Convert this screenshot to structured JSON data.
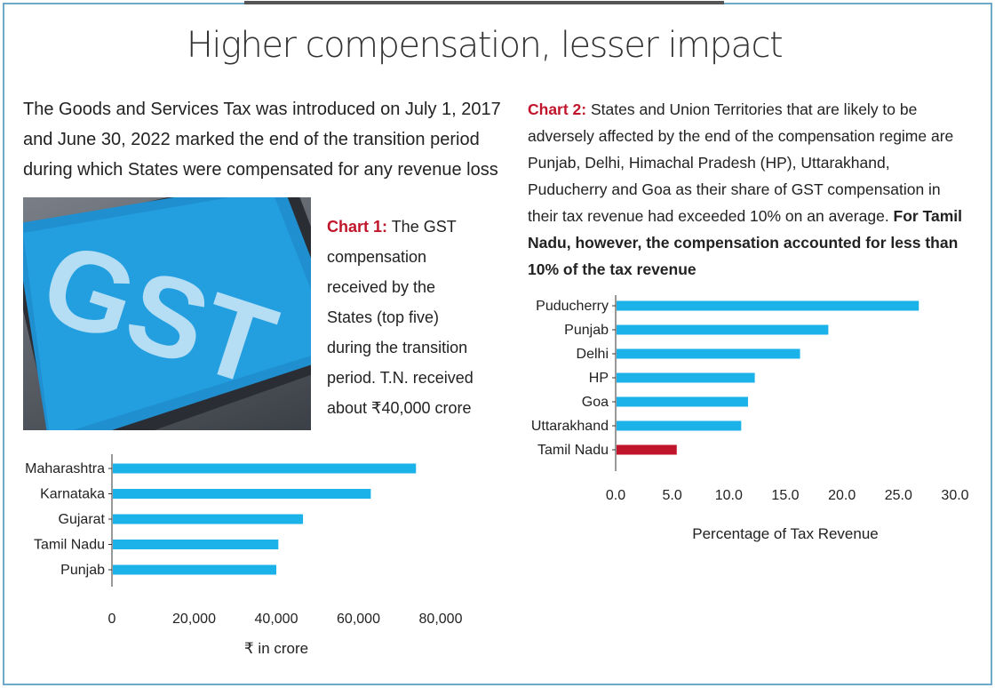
{
  "headline": "Higher compensation, lesser impact",
  "intro": "The Goods and Services Tax was introduced on July 1, 2017 and June 30, 2022 marked the end of the transition period during which States were compensated for any revenue loss",
  "image": {
    "logo_text": "GST"
  },
  "chart1_caption": {
    "label": "Chart 1:",
    "text": " The GST compensation received by the States (top five) during the transition period. T.N. received about ₹40,000 crore"
  },
  "chart2_caption": {
    "label": "Chart 2:",
    "text": " States and Union Territories that are likely to be adversely affected by the end of the compensation regime are Punjab, Delhi, Himachal Pradesh (HP), Uttarakhand, Puducherry and Goa as their share of GST compensation in their tax revenue had exceeded 10% on an average. ",
    "bold": "For Tamil Nadu, however, the compensation accounted for less than 10% of the tax revenue"
  },
  "colors": {
    "bar": "#1ab2e8",
    "highlight": "#c0152a",
    "caption_label": "#c0152a"
  },
  "chart_data": [
    {
      "type": "bar",
      "orientation": "horizontal",
      "categories": [
        "Maharashtra",
        "Karnataka",
        "Gujarat",
        "Tamil Nadu",
        "Punjab"
      ],
      "values": [
        74000,
        63000,
        46500,
        40500,
        40000
      ],
      "xlabel": "₹ in crore",
      "xlim": [
        0,
        80000
      ],
      "xticks": [
        0,
        20000,
        40000,
        60000,
        80000
      ],
      "xtick_labels": [
        "0",
        "20,000",
        "40,000",
        "60,000",
        "80,000"
      ],
      "grid": false
    },
    {
      "type": "bar",
      "orientation": "horizontal",
      "categories": [
        "Puducherry",
        "Punjab",
        "Delhi",
        "HP",
        "Goa",
        "Uttarakhand",
        "Tamil Nadu"
      ],
      "values": [
        26.8,
        18.8,
        16.3,
        12.3,
        11.7,
        11.1,
        5.4
      ],
      "highlight": "Tamil Nadu",
      "xlabel": "Percentage of Tax Revenue",
      "xlim": [
        0,
        30
      ],
      "xticks": [
        0,
        5,
        10,
        15,
        20,
        25,
        30
      ],
      "xtick_labels": [
        "0.0",
        "5.0",
        "10.0",
        "15.0",
        "20.0",
        "25.0",
        "30.0"
      ],
      "grid": false
    }
  ]
}
